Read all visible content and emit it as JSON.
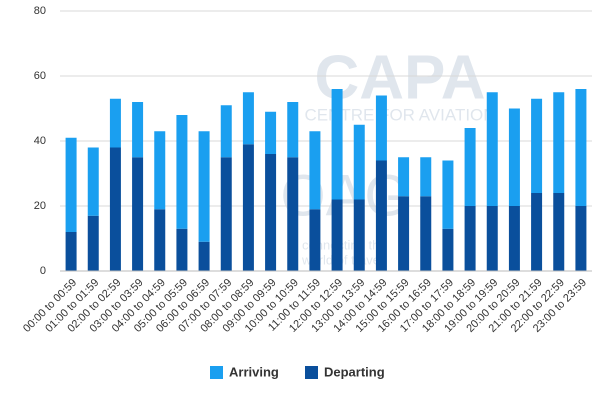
{
  "chart_data": {
    "type": "stacked-bar",
    "categories": [
      "00:00 to 00:59",
      "01:00 to 01:59",
      "02:00 to 02:59",
      "03:00 to 03:59",
      "04:00 to 04:59",
      "05:00 to 05:59",
      "06:00 to 06:59",
      "07:00 to 07:59",
      "08:00 to 08:59",
      "09:00 to 09:59",
      "10:00 to 10:59",
      "11:00 to 11:59",
      "12:00 to 12:59",
      "13:00 to 13:59",
      "14:00 to 14:59",
      "15:00 to 15:59",
      "16:00 to 16:59",
      "17:00 to 17:59",
      "18:00 to 18:59",
      "19:00 to 19:59",
      "20:00 to 20:59",
      "21:00 to 21:59",
      "22:00 to 22:59",
      "23:00 to 23:59"
    ],
    "series": [
      {
        "name": "Arriving",
        "color": "#1a9ff0",
        "values": [
          29,
          21,
          15,
          17,
          24,
          35,
          34,
          16,
          16,
          13,
          17,
          24,
          34,
          23,
          20,
          12,
          12,
          21,
          24,
          35,
          30,
          29,
          31,
          36
        ]
      },
      {
        "name": "Departing",
        "color": "#0a4f9c",
        "values": [
          12,
          17,
          38,
          35,
          19,
          13,
          9,
          35,
          39,
          36,
          35,
          19,
          22,
          22,
          34,
          23,
          23,
          13,
          20,
          20,
          20,
          24,
          24,
          20
        ]
      }
    ],
    "ylim": [
      0,
      80
    ],
    "yticks": [
      0,
      20,
      40,
      60,
      80
    ],
    "grid": true,
    "legend": "bottom",
    "watermark": [
      "CAPA",
      "CENTRE FOR AVIATION",
      "OAG",
      "connecting the",
      "world of travel"
    ]
  }
}
